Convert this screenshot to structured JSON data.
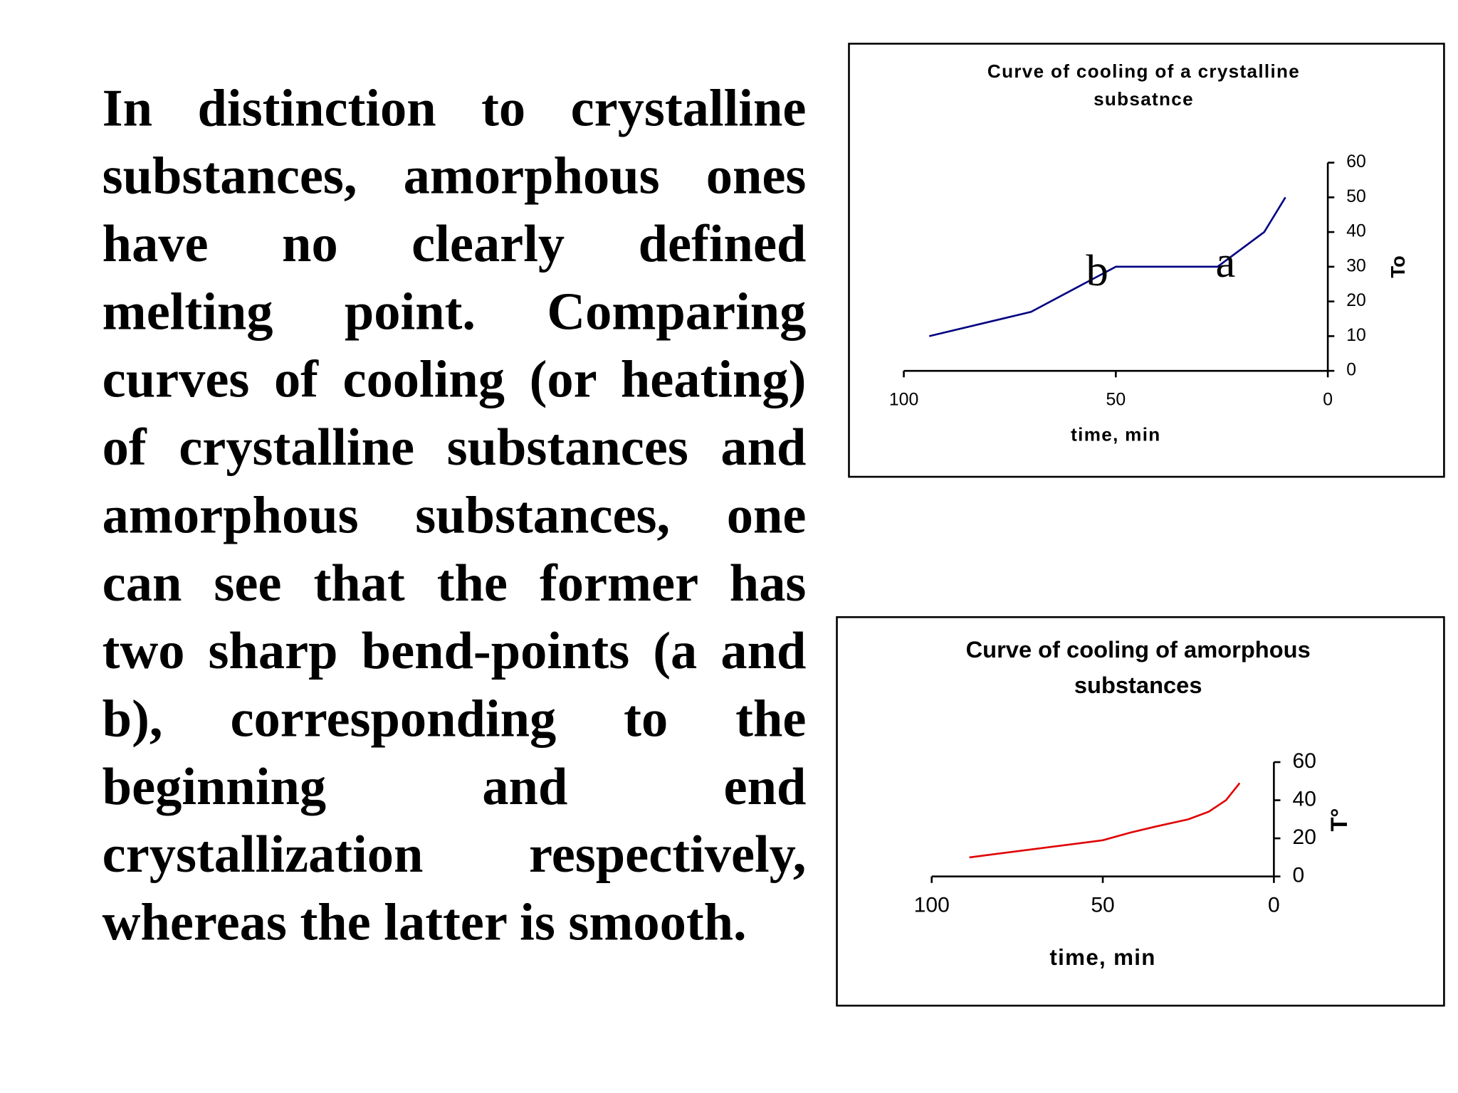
{
  "text": "In distinction to crystalline substances, amorphous ones have no clearly defined melting point. Comparing curves of cooling (or heating) of crystalline substances and amorphous substances, one can see that the former has two sharp bend-points (a and b), corresponding to the beginning and end crystallization respectively, whereas the latter is smooth.",
  "chart_data": [
    {
      "type": "line",
      "title": [
        "Curve of cooling of a crystalline",
        "subsatnce"
      ],
      "x_label": "time, min",
      "y_label": "To",
      "y_axis_position": "right",
      "x": [
        94,
        70,
        50,
        26,
        15,
        10
      ],
      "series": [
        {
          "color": "#000080",
          "values": [
            10,
            17,
            30,
            30,
            40,
            50
          ]
        }
      ],
      "xlim": [
        100,
        0
      ],
      "xticks": [
        100,
        50,
        0
      ],
      "ylim": [
        0,
        60
      ],
      "yticks": [
        0,
        10,
        20,
        30,
        40,
        50,
        60
      ],
      "annotations": [
        "b",
        "a"
      ]
    },
    {
      "type": "line",
      "title": [
        "Curve of cooling of amorphous",
        "substances"
      ],
      "x_label": "time, min",
      "y_label": "T°",
      "y_axis_position": "right",
      "x": [
        89,
        50,
        42,
        35,
        25,
        19,
        14,
        10
      ],
      "series": [
        {
          "color": "#e00000",
          "values": [
            10,
            19,
            23,
            26,
            30,
            34,
            40,
            49
          ]
        }
      ],
      "xlim": [
        100,
        0
      ],
      "xticks": [
        100,
        50,
        0
      ],
      "ylim": [
        0,
        60
      ],
      "yticks": [
        0,
        20,
        40,
        60
      ]
    }
  ]
}
